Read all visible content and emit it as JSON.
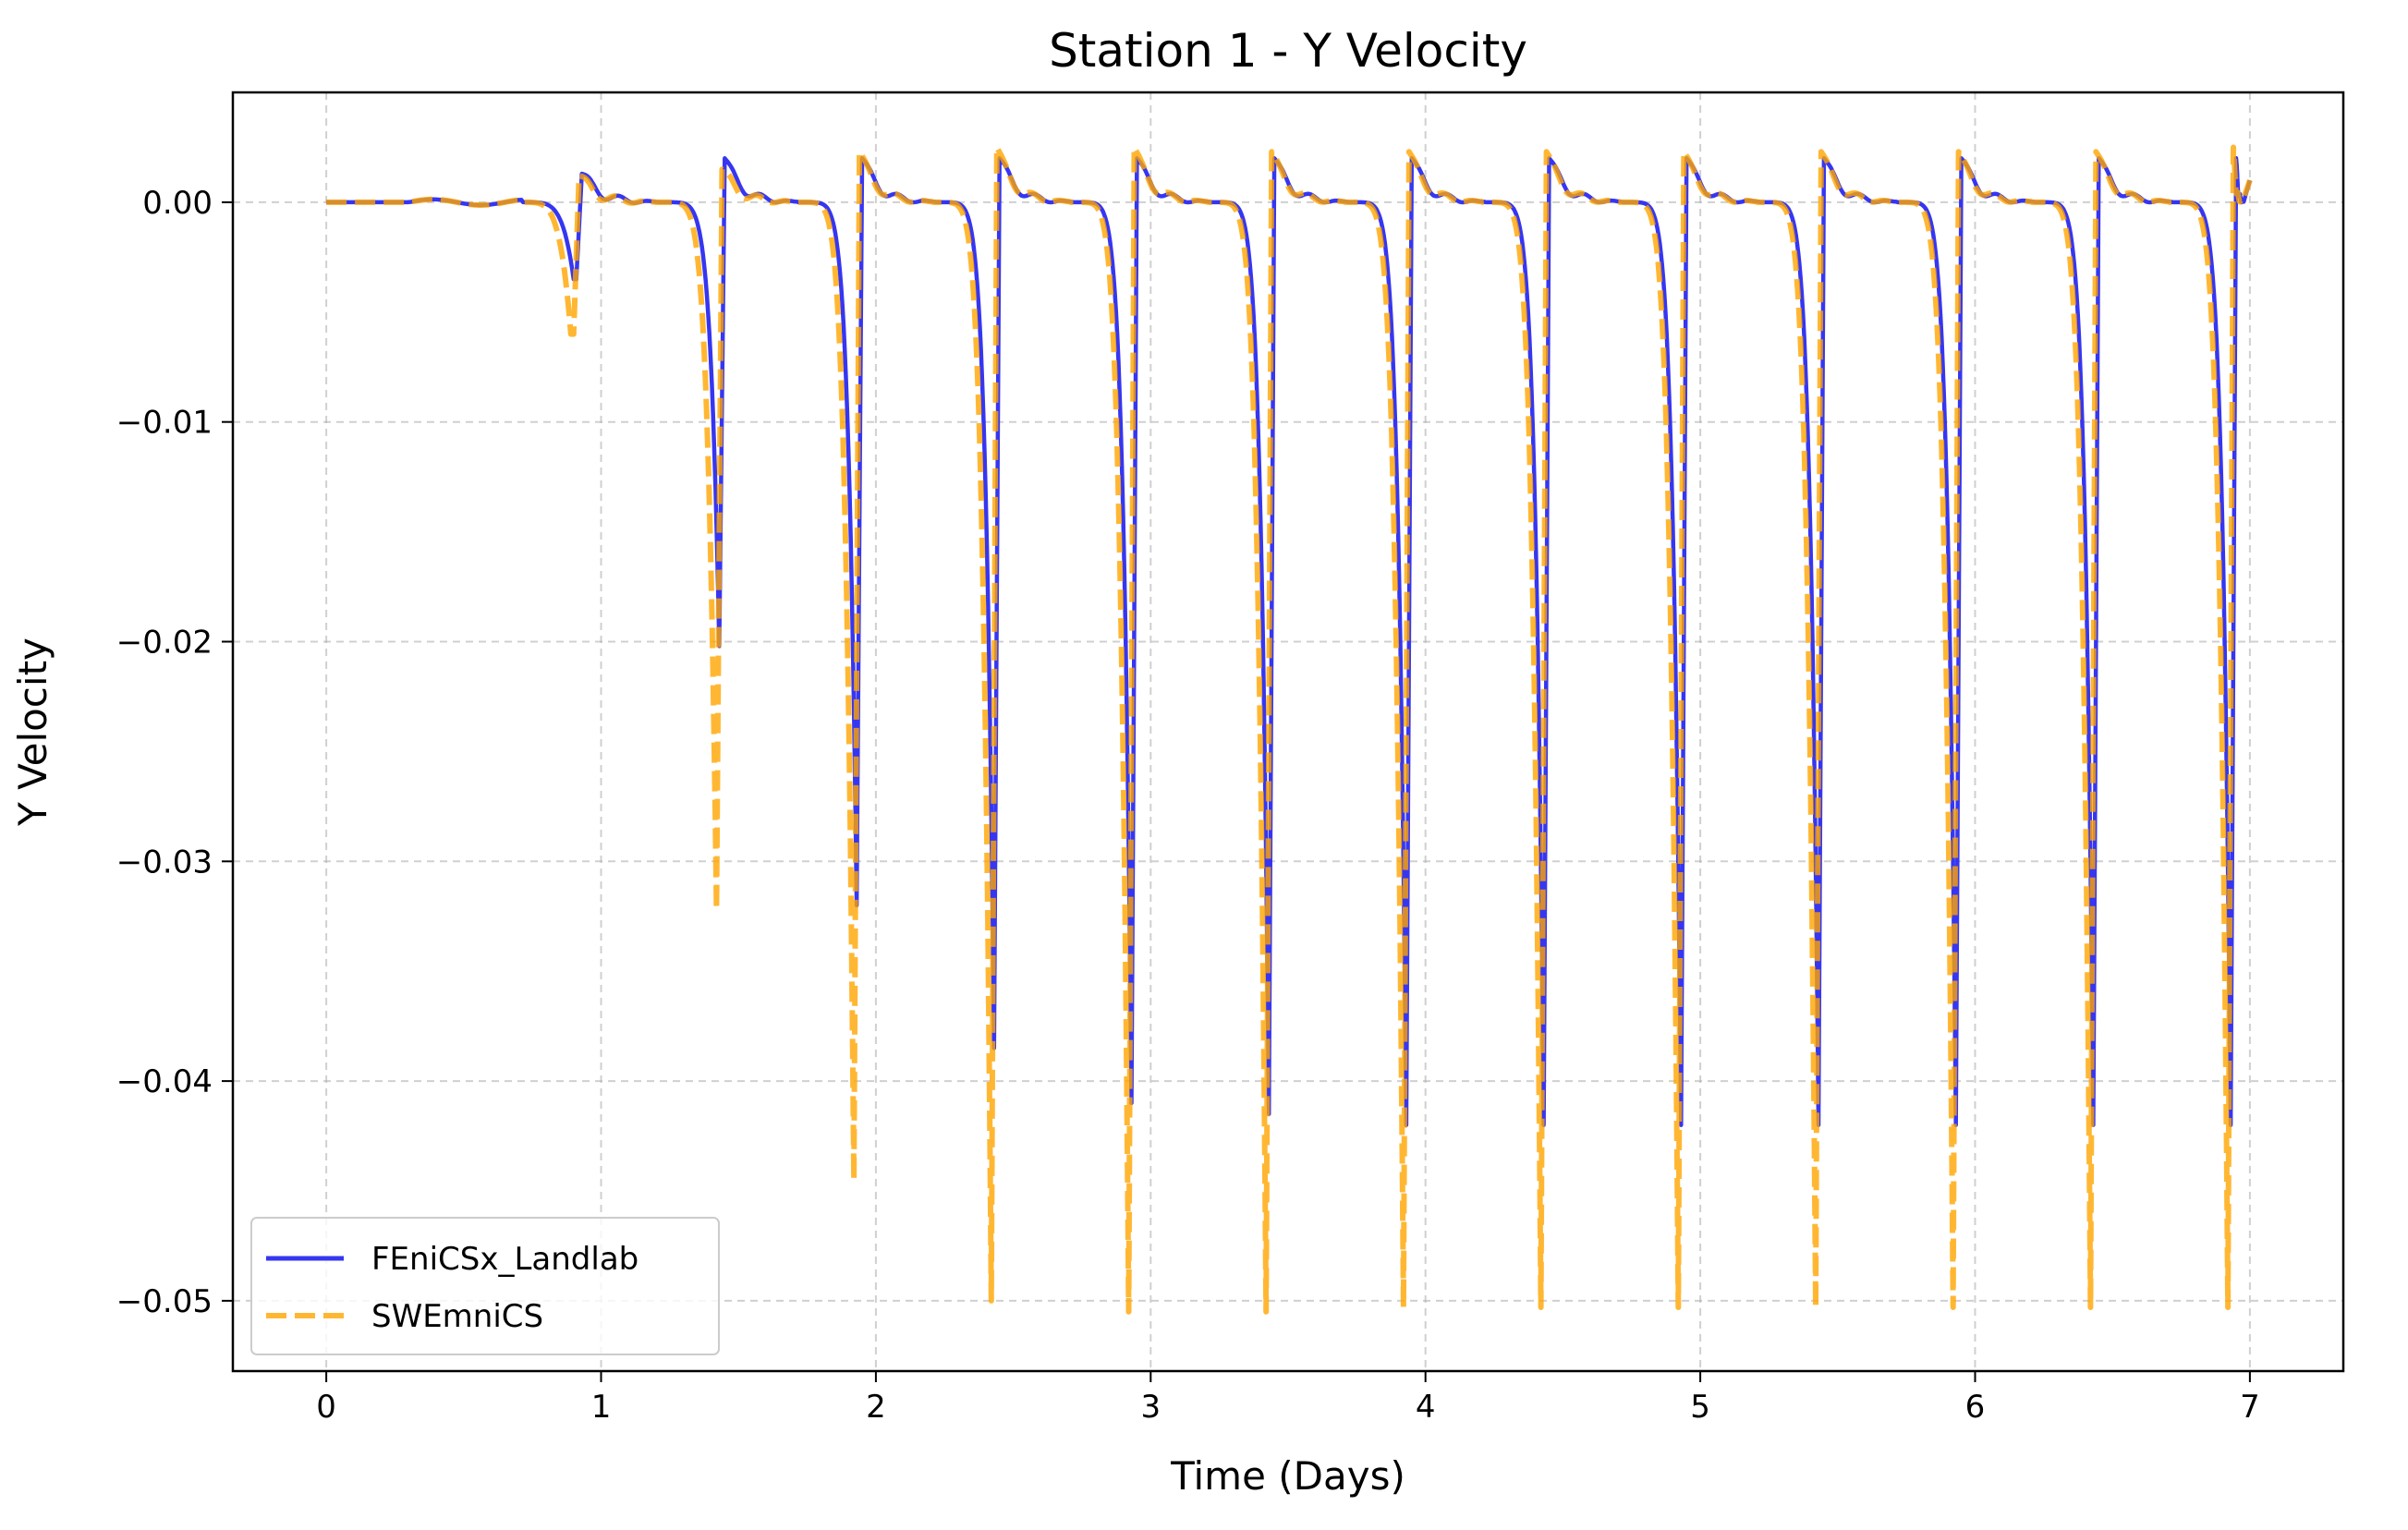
{
  "chart_data": {
    "type": "line",
    "title": "Station 1 - Y Velocity",
    "xlabel": "Time (Days)",
    "ylabel": "Y Velocity",
    "xlim": [
      -0.34,
      7.34
    ],
    "ylim": [
      -0.0532,
      0.005
    ],
    "x_ticks": [
      0,
      1,
      2,
      3,
      4,
      5,
      6,
      7
    ],
    "x_tick_labels": [
      "0",
      "1",
      "2",
      "3",
      "4",
      "5",
      "6",
      "7"
    ],
    "y_ticks": [
      0.0,
      -0.01,
      -0.02,
      -0.03,
      -0.04,
      -0.05
    ],
    "y_tick_labels": [
      "0.00",
      "−0.01",
      "−0.02",
      "−0.03",
      "−0.04",
      "−0.05"
    ],
    "grid": true,
    "legend_position": "lower-left",
    "x_range": [
      0,
      7
    ],
    "series": [
      {
        "name": "FEniCSx_Landlab",
        "color": "#2b2bf0",
        "style": "solid",
        "cycle_minima": [
          {
            "t": 0.91,
            "v": -0.0035
          },
          {
            "t": 1.43,
            "v": -0.0202
          },
          {
            "t": 1.93,
            "v": -0.032
          },
          {
            "t": 2.43,
            "v": -0.0385
          },
          {
            "t": 2.93,
            "v": -0.041
          },
          {
            "t": 3.43,
            "v": -0.0415
          },
          {
            "t": 3.93,
            "v": -0.042
          },
          {
            "t": 4.43,
            "v": -0.042
          },
          {
            "t": 4.93,
            "v": -0.042
          },
          {
            "t": 5.43,
            "v": -0.042
          },
          {
            "t": 5.93,
            "v": -0.042
          },
          {
            "t": 6.43,
            "v": -0.042
          },
          {
            "t": 6.93,
            "v": -0.042
          }
        ],
        "cycle_peaks": [
          {
            "t": 0.93,
            "v": 0.0013
          },
          {
            "t": 1.45,
            "v": 0.002
          },
          {
            "t": 1.95,
            "v": 0.002
          },
          {
            "t": 2.45,
            "v": 0.002
          },
          {
            "t": 2.95,
            "v": 0.002
          },
          {
            "t": 3.45,
            "v": 0.002
          },
          {
            "t": 3.95,
            "v": 0.002
          },
          {
            "t": 4.45,
            "v": 0.002
          },
          {
            "t": 4.95,
            "v": 0.002
          },
          {
            "t": 5.45,
            "v": 0.002
          },
          {
            "t": 5.95,
            "v": 0.002
          },
          {
            "t": 6.45,
            "v": 0.002
          },
          {
            "t": 6.95,
            "v": 0.002
          }
        ],
        "end_value": 0.001
      },
      {
        "name": "SWEmniCS",
        "color": "#ffa500",
        "style": "dashed",
        "cycle_minima": [
          {
            "t": 0.9,
            "v": -0.006
          },
          {
            "t": 1.42,
            "v": -0.0322
          },
          {
            "t": 1.92,
            "v": -0.0445
          },
          {
            "t": 2.42,
            "v": -0.05
          },
          {
            "t": 2.92,
            "v": -0.0505
          },
          {
            "t": 3.42,
            "v": -0.0505
          },
          {
            "t": 3.92,
            "v": -0.0503
          },
          {
            "t": 4.42,
            "v": -0.0503
          },
          {
            "t": 4.92,
            "v": -0.0503
          },
          {
            "t": 5.42,
            "v": -0.0503
          },
          {
            "t": 5.92,
            "v": -0.0503
          },
          {
            "t": 6.42,
            "v": -0.0503
          },
          {
            "t": 6.92,
            "v": -0.0503
          }
        ],
        "cycle_peaks": [
          {
            "t": 0.92,
            "v": 0.0012
          },
          {
            "t": 1.44,
            "v": 0.0015
          },
          {
            "t": 1.94,
            "v": 0.0023
          },
          {
            "t": 2.44,
            "v": 0.0025
          },
          {
            "t": 2.94,
            "v": 0.0025
          },
          {
            "t": 3.44,
            "v": 0.0023
          },
          {
            "t": 3.94,
            "v": 0.0023
          },
          {
            "t": 4.44,
            "v": 0.0023
          },
          {
            "t": 4.94,
            "v": 0.0023
          },
          {
            "t": 5.44,
            "v": 0.0023
          },
          {
            "t": 5.94,
            "v": 0.0023
          },
          {
            "t": 6.44,
            "v": 0.0023
          },
          {
            "t": 6.94,
            "v": 0.0025
          }
        ],
        "end_value": 0.001
      }
    ]
  }
}
